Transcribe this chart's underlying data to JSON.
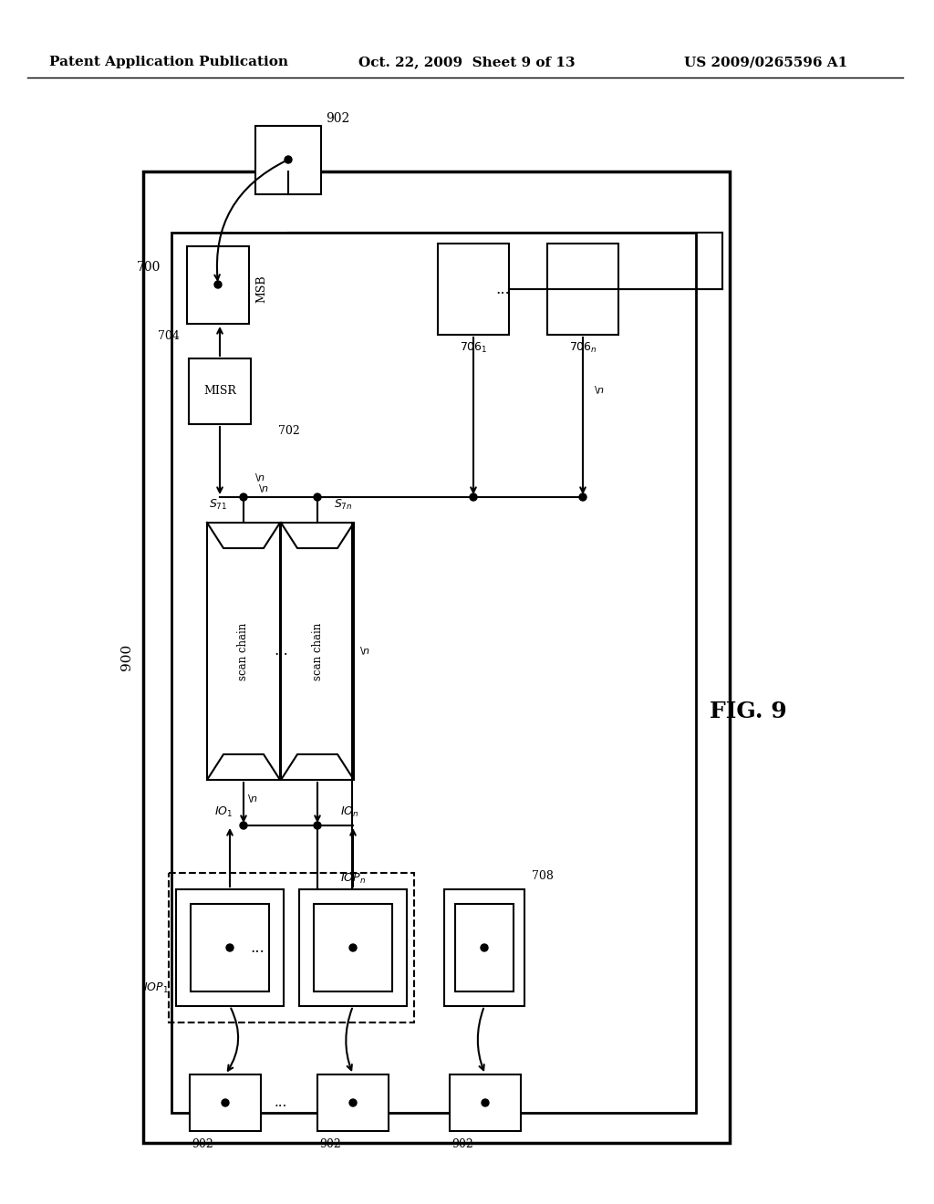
{
  "title_left": "Patent Application Publication",
  "title_mid": "Oct. 22, 2009  Sheet 9 of 13",
  "title_right": "US 2009/0265596 A1",
  "fig_label": "FIG. 9",
  "bg_color": "#ffffff"
}
